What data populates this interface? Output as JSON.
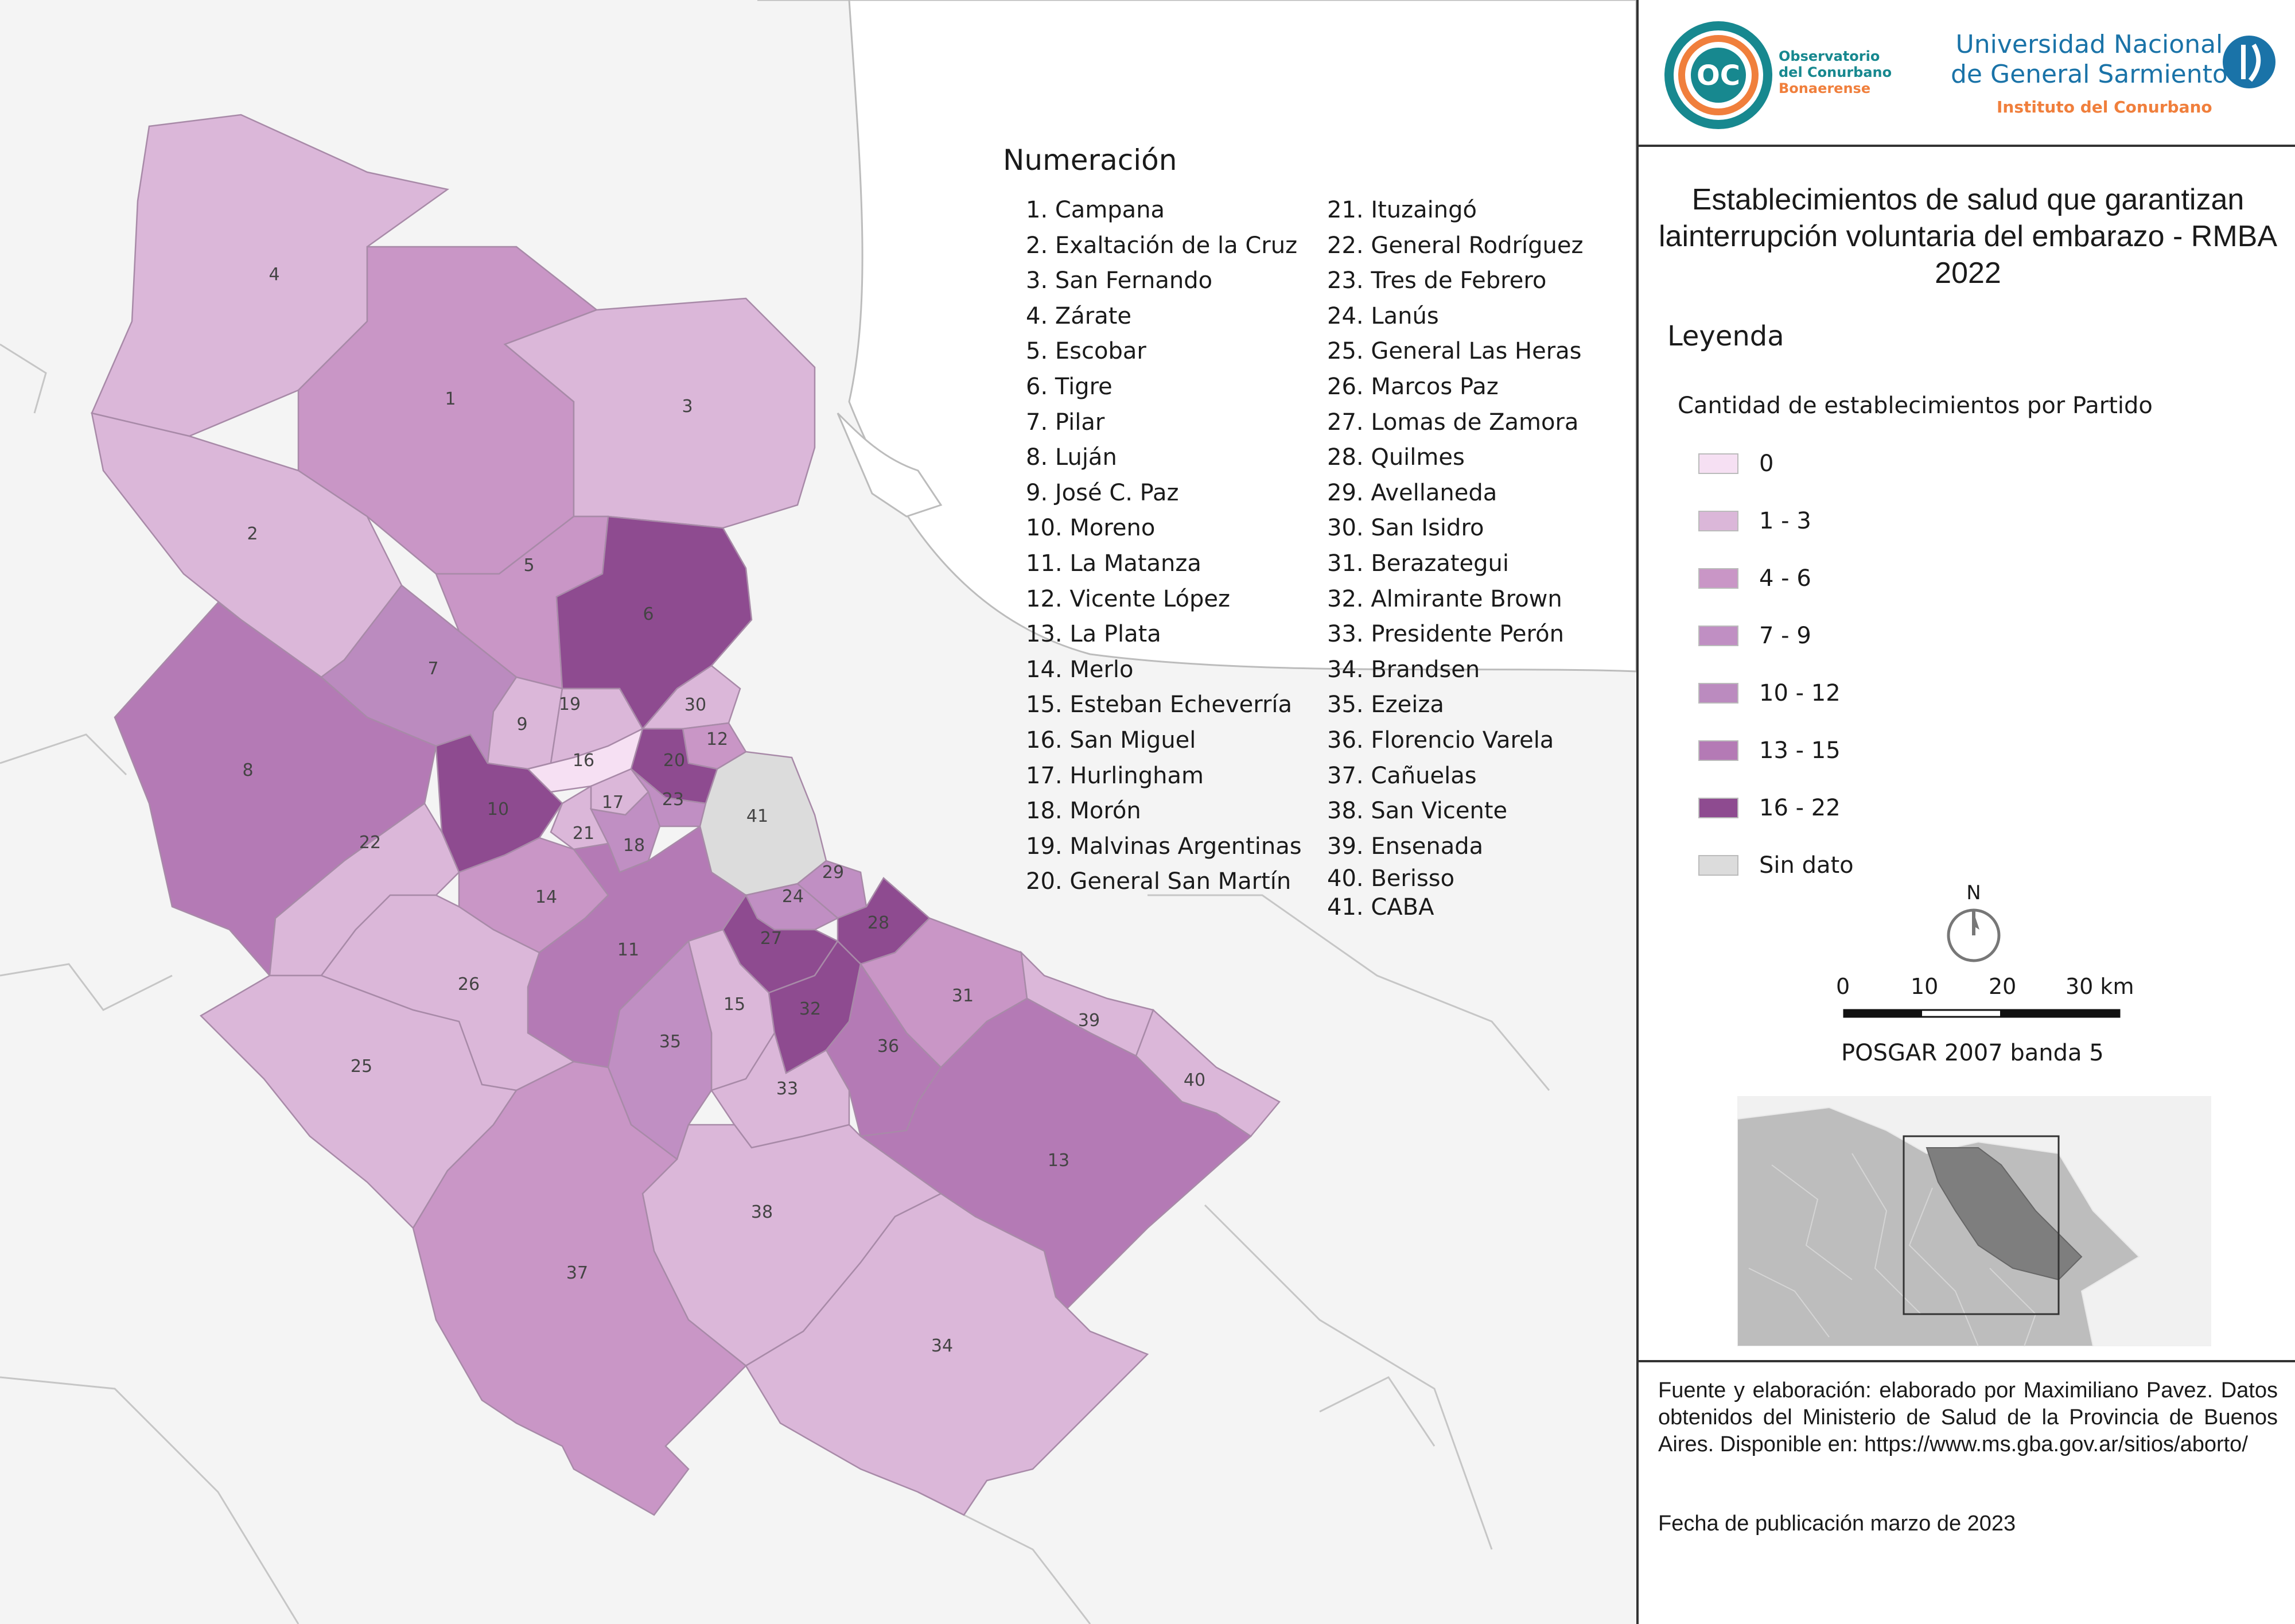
{
  "header": {
    "occ_logo_letters": "OC",
    "occ_line1": "Observatorio",
    "occ_line2": "del Conurbano",
    "occ_line3": "Bonaerense",
    "ungs_line1": "Universidad Nacional",
    "ungs_line2": "de General Sarmiento",
    "ungs_sub": "Instituto del Conurbano"
  },
  "title": "Establecimientos de salud que garantizan lainterrupción voluntaria del embarazo - RMBA 2022",
  "legend": {
    "heading": "Leyenda",
    "subtitle": "Cantidad de establecimientos por Partido",
    "classes": [
      {
        "label": "0",
        "color": "#f6e0f3"
      },
      {
        "label": "1 - 3",
        "color": "#dbb7d9"
      },
      {
        "label": "4 - 6",
        "color": "#c996c6"
      },
      {
        "label": "7 - 9",
        "color": "#c08fc3"
      },
      {
        "label": "10 - 12",
        "color": "#bb8bbf"
      },
      {
        "label": "13 - 15",
        "color": "#b47ab5"
      },
      {
        "label": "16 - 22",
        "color": "#8e4b90"
      },
      {
        "label": "Sin dato",
        "color": "#dcdcdc"
      }
    ]
  },
  "north": "N",
  "scale": {
    "labels": [
      "0",
      "10",
      "20",
      "30 km"
    ]
  },
  "projection": "POSGAR 2007 banda 5",
  "numeracion": {
    "title": "Numeración",
    "items": [
      "1. Campana",
      "2. Exaltación de la Cruz",
      "3. San Fernando",
      "4. Zárate",
      "5. Escobar",
      "6. Tigre",
      "7. Pilar",
      "8. Luján",
      "9. José C. Paz",
      "10. Moreno",
      "11. La Matanza",
      "12. Vicente López",
      "13. La Plata",
      "14. Merlo",
      "15. Esteban Echeverría",
      "16. San Miguel",
      "17. Hurlingham",
      "18. Morón",
      "19. Malvinas Argentinas",
      "20. General San Martín",
      "21. Ituzaingó",
      "22. General Rodríguez",
      "23. Tres de Febrero",
      "24. Lanús",
      "25. General Las Heras",
      "26. Marcos Paz",
      "27. Lomas de Zamora",
      "28. Quilmes",
      "29. Avellaneda",
      "30. San Isidro",
      "31. Berazategui",
      "32. Almirante Brown",
      "33. Presidente Perón",
      "34. Brandsen",
      "35. Ezeiza",
      "36. Florencio Varela",
      "37. Cañuelas",
      "38. San Vicente",
      "39. Ensenada",
      "40. Berisso",
      "41. CABA"
    ]
  },
  "map_labels": [
    "1",
    "2",
    "3",
    "4",
    "5",
    "6",
    "7",
    "8",
    "9",
    "10",
    "11",
    "12",
    "13",
    "14",
    "15",
    "16",
    "17",
    "18",
    "19",
    "20",
    "21",
    "22",
    "23",
    "24",
    "25",
    "26",
    "27",
    "28",
    "29",
    "30",
    "31",
    "32",
    "33",
    "34",
    "35",
    "36",
    "37",
    "38",
    "39",
    "40",
    "41"
  ],
  "source": "Fuente y elaboración: elaborado por Maximiliano Pavez. Datos obtenidos del Ministerio de Salud de la Provincia de Buenos Aires. Disponible en: https://www.ms.gba.gov.ar/sitios/aborto/",
  "date": "Fecha de publicación marzo de 2023"
}
